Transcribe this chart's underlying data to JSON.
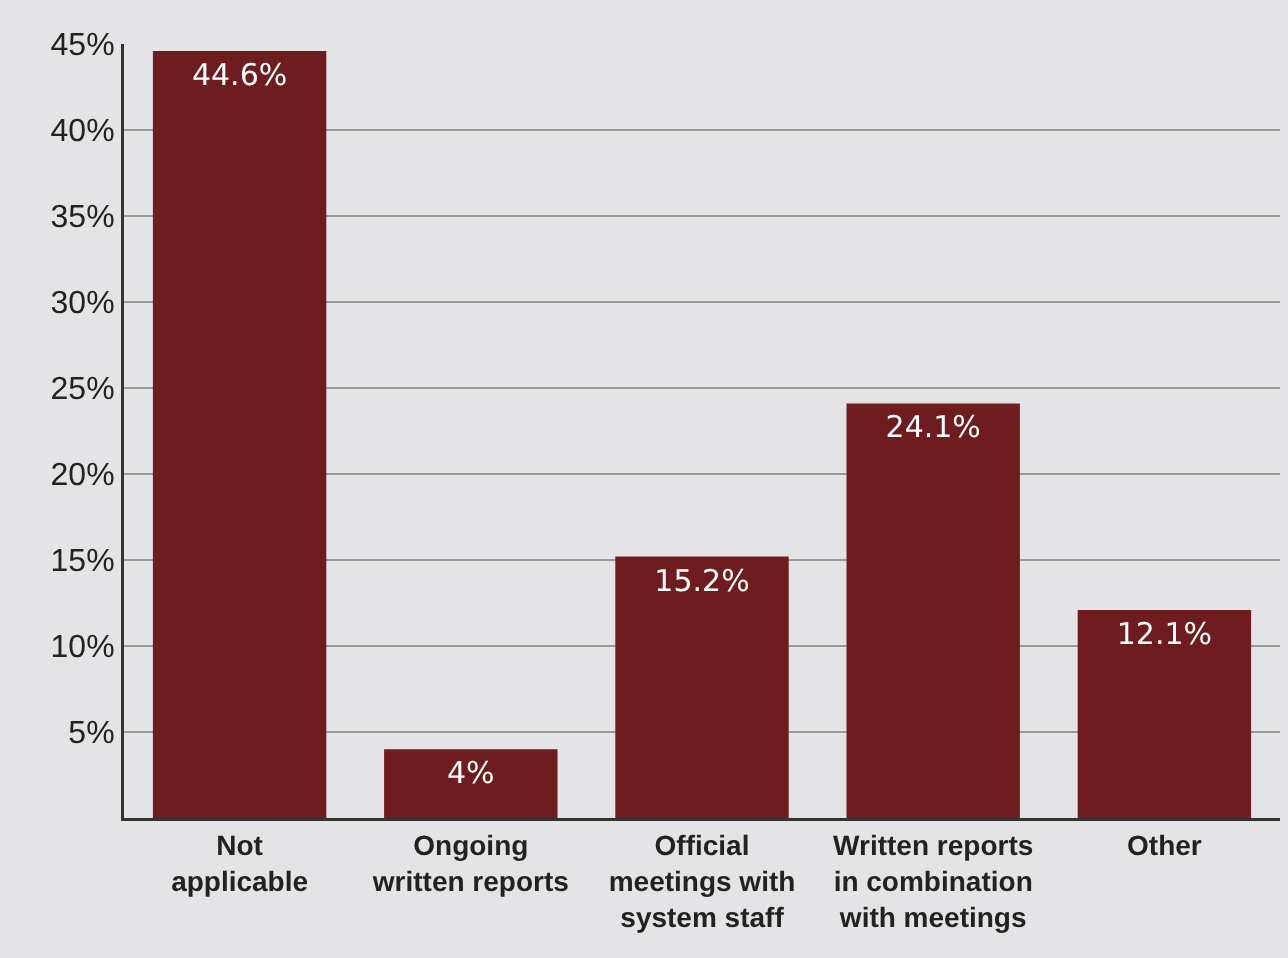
{
  "chart_data": {
    "type": "bar",
    "categories": [
      "Not\napplicable",
      "Ongoing\nwritten reports",
      "Official\nmeetings with\nsystem staff",
      "Written reports\nin combination\nwith meetings",
      "Other"
    ],
    "values": [
      44.6,
      4,
      15.2,
      24.1,
      12.1
    ],
    "value_labels": [
      "44.6%",
      "4%",
      "15.2%",
      "24.1%",
      "12.1%"
    ],
    "color": "#6e1c20",
    "ylim": [
      0,
      45
    ],
    "yticks": [
      {
        "value": 5,
        "label": "5%"
      },
      {
        "value": 10,
        "label": "10%"
      },
      {
        "value": 15,
        "label": "15%"
      },
      {
        "value": 20,
        "label": "20%"
      },
      {
        "value": 25,
        "label": "25%"
      },
      {
        "value": 30,
        "label": "30%"
      },
      {
        "value": 35,
        "label": "35%"
      },
      {
        "value": 40,
        "label": "40%"
      },
      {
        "value": 45,
        "label": "45%"
      }
    ],
    "grid": "y"
  }
}
